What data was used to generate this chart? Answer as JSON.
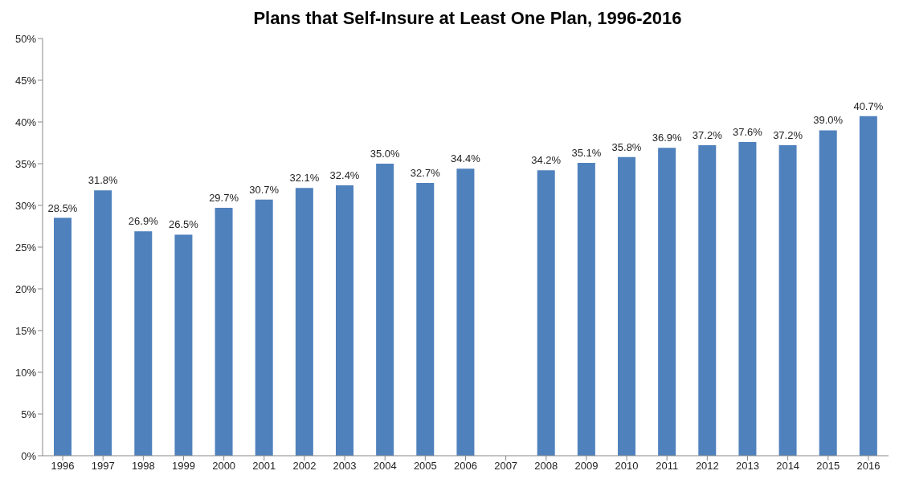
{
  "chart_data": {
    "type": "bar",
    "title": "Plans that Self-Insure at Least One Plan, 1996-2016",
    "categories": [
      "1996",
      "1997",
      "1998",
      "1999",
      "2000",
      "2001",
      "2002",
      "2003",
      "2004",
      "2005",
      "2006",
      "2007",
      "2008",
      "2009",
      "2010",
      "2011",
      "2012",
      "2013",
      "2014",
      "2015",
      "2016"
    ],
    "values": [
      28.5,
      31.8,
      26.9,
      26.5,
      29.7,
      30.7,
      32.1,
      32.4,
      35.0,
      32.7,
      34.4,
      null,
      34.2,
      35.1,
      35.8,
      36.9,
      37.2,
      37.6,
      37.2,
      39.0,
      40.7
    ],
    "value_labels": [
      "28.5%",
      "31.8%",
      "26.9%",
      "26.5%",
      "29.7%",
      "30.7%",
      "32.1%",
      "32.4%",
      "35.0%",
      "32.7%",
      "34.4%",
      null,
      "34.2%",
      "35.1%",
      "35.8%",
      "36.9%",
      "37.2%",
      "37.6%",
      "37.2%",
      "39.0%",
      "40.7%"
    ],
    "color": "#4f81bd",
    "ylim": [
      0,
      50
    ],
    "yticks": [
      {
        "value": 0,
        "label": "0%"
      },
      {
        "value": 5,
        "label": "5%"
      },
      {
        "value": 10,
        "label": "10%"
      },
      {
        "value": 15,
        "label": "15%"
      },
      {
        "value": 20,
        "label": "20%"
      },
      {
        "value": 25,
        "label": "25%"
      },
      {
        "value": 30,
        "label": "30%"
      },
      {
        "value": 35,
        "label": "35%"
      },
      {
        "value": 40,
        "label": "40%"
      },
      {
        "value": 45,
        "label": "45%"
      },
      {
        "value": 50,
        "label": "50%"
      }
    ]
  }
}
